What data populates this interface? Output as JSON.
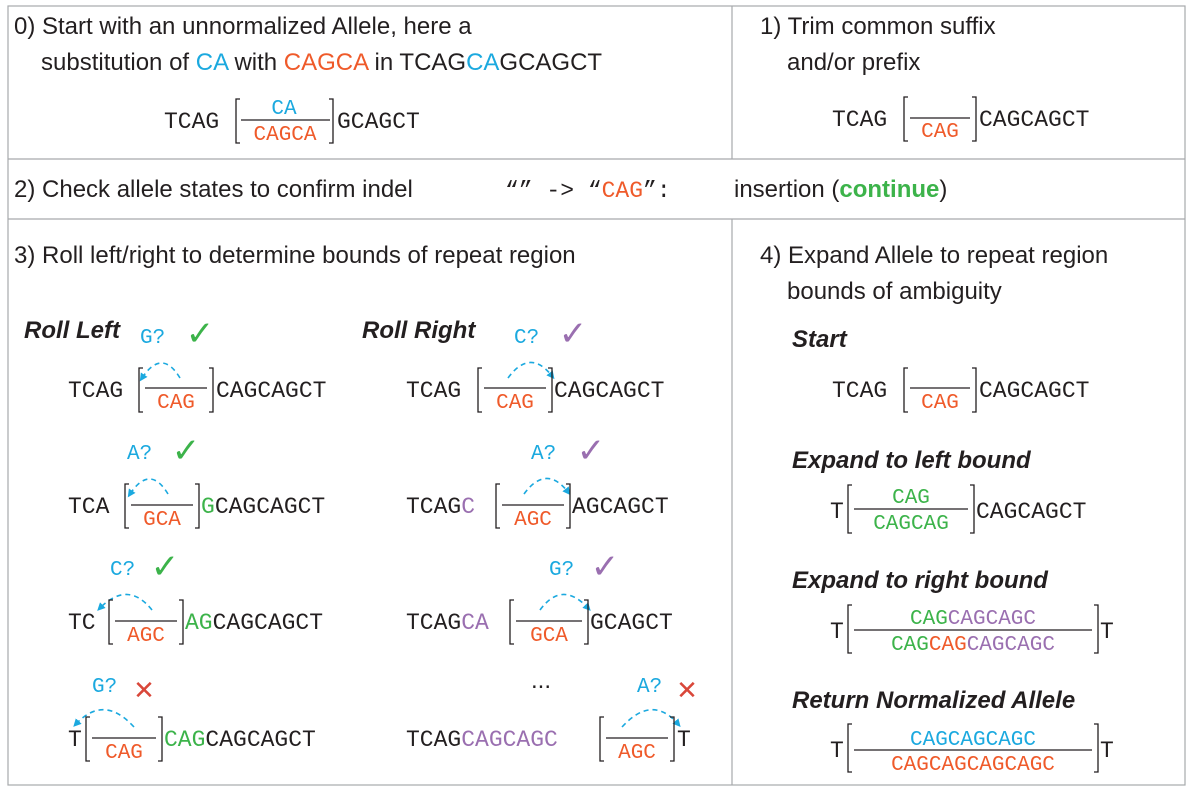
{
  "colors": {
    "text": "#231f20",
    "blue": "#1ba9df",
    "orange": "#ef5a2a",
    "green": "#3cb34a",
    "purple": "#9a6fb0",
    "red": "#d9473a",
    "grid": "#a7a9ac"
  },
  "panel0": {
    "line1": "0) Start with an unnormalized Allele, here a",
    "line2_a": "substitution of ",
    "line2_b": "CA",
    "line2_c": " with ",
    "line2_d": "CAGCA",
    "line2_e": " in TCAG",
    "line2_f": "CA",
    "line2_g": "GCAGCT",
    "seq_left": "TCAG",
    "seq_ref": "CA",
    "seq_alt": "CAGCA",
    "seq_right": "GCAGCT"
  },
  "panel1": {
    "line1": "1) Trim common suffix",
    "line2": "and/or prefix",
    "seq_left": "TCAG",
    "seq_alt": "CAG",
    "seq_right": "CAGCAGCT"
  },
  "panel2": {
    "label": "2) Check allele states to confirm indel",
    "code_open": "“” -> “",
    "code_alt": "CAG",
    "code_close": "”:",
    "result_a": "insertion (",
    "result_b": "continue",
    "result_c": ")"
  },
  "panel3": {
    "title": "3) Roll left/right to determine bounds of repeat region",
    "roll_left": {
      "label": "Roll Left",
      "rows": [
        {
          "q": "G?",
          "mark": "✓",
          "left": "TCAG",
          "left_tail": "",
          "alt": "CAG",
          "right_head": "",
          "right": "CAGCAGCT"
        },
        {
          "q": "A?",
          "mark": "✓",
          "left": "TCA",
          "left_tail": "",
          "alt": "GCA",
          "right_head": "G",
          "right": "CAGCAGCT"
        },
        {
          "q": "C?",
          "mark": "✓",
          "left": "TC",
          "left_tail": "",
          "alt": "AGC",
          "right_head": "AG",
          "right": "CAGCAGCT"
        },
        {
          "q": "G?",
          "mark": "✕",
          "left": "T",
          "left_tail": "",
          "alt": "CAG",
          "right_head": "CAG",
          "right": "CAGCAGCT"
        }
      ]
    },
    "roll_right": {
      "label": "Roll Right",
      "ellipsis": "...",
      "rows": [
        {
          "q": "C?",
          "mark": "✓",
          "left": "TCAG",
          "left_tail": "",
          "alt": "CAG",
          "right": "CAGCAGCT"
        },
        {
          "q": "A?",
          "mark": "✓",
          "left": "TCAG",
          "left_tail": "C",
          "alt": "AGC",
          "right": "AGCAGCT"
        },
        {
          "q": "G?",
          "mark": "✓",
          "left": "TCAG",
          "left_tail": "CA",
          "alt": "GCA",
          "right": "GCAGCT"
        },
        {
          "q": "A?",
          "mark": "✕",
          "left": "TCAG",
          "left_tail": "CAGCAGC",
          "alt": "AGC",
          "right": "T"
        }
      ]
    }
  },
  "panel4": {
    "line1": "4) Expand Allele to repeat region",
    "line2": "bounds of ambiguity",
    "start": {
      "label": "Start",
      "left": "TCAG",
      "alt": "CAG",
      "right": "CAGCAGCT"
    },
    "left_bound": {
      "label": "Expand to left bound",
      "left": "T",
      "ref": "CAG",
      "alt_a": "CAG",
      "alt_b": "CAG",
      "right": "CAGCAGCT"
    },
    "right_bound": {
      "label": "Expand to right bound",
      "left": "T",
      "ref_a": "CAG",
      "ref_b": "CAGCAGC",
      "alt_a": "CAG",
      "alt_b": "CAG",
      "alt_c": "CAGCAGC",
      "right": "T"
    },
    "normalized": {
      "label": "Return Normalized Allele",
      "left": "T",
      "ref": "CAGCAGCAGC",
      "alt": "CAGCAGCAGCAGC",
      "right": "T"
    }
  }
}
